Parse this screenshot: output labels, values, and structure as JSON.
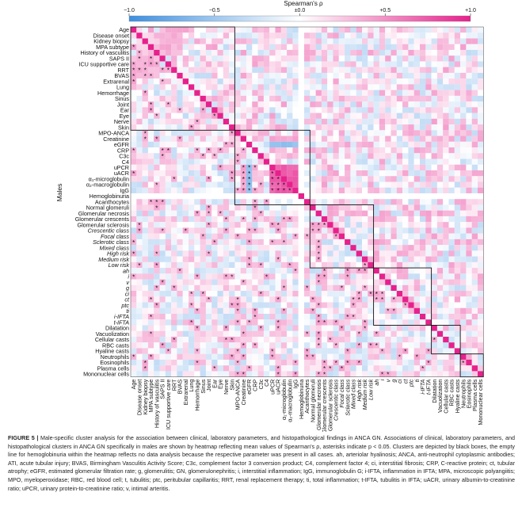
{
  "chart_data": {
    "type": "heatmap",
    "colorbar": {
      "title": "Spearman's ρ",
      "ticks": [
        "−1.0",
        "−0.5",
        "±0.0",
        "+0.5",
        "+1.0"
      ],
      "range": [
        -1,
        1
      ],
      "colors": {
        "negative": "#3d8fe0",
        "neutral": "#ffffff",
        "positive": "#e6218c"
      }
    },
    "ylabel": "Males",
    "variables": [
      "Age",
      "Disease onset",
      "Kidney biopsy",
      "MPA subtype",
      "History of vasculitis",
      "SAPS II",
      "ICU supportive care",
      "RRT",
      "BVAS",
      "Extrarenal",
      "Lung",
      "Hemorrhage",
      "Sinus",
      "Joint",
      "Ear",
      "Eye",
      "Nerve",
      "Skin",
      "MPO-ANCA",
      "Creatinine",
      "eGFR",
      "CRP",
      "C3c",
      "C4",
      "uPCR",
      "uACR",
      "α₁-microglobulin",
      "α₂-macroglobulin",
      "IgG",
      "Hemoglobinuria",
      "Acanthocytes",
      "Normal glomeruli",
      "Glomerular necrosis",
      "Glomerular crescents",
      "Glomerular sclerosis",
      "Crescentic class",
      "Focal class",
      "Sclerotic class",
      "Mixed class",
      "High risk",
      "Medium risk",
      "Low risk",
      "ah",
      "i",
      "v",
      "g",
      "ci",
      "ct",
      "ptc",
      "ti",
      "i-IFTA",
      "t-IFTA",
      "Dilatation",
      "Vacuolization",
      "Cellular casts",
      "RBC casts",
      "Hyaline casts",
      "Neutrophils",
      "Eosinophils",
      "Plasma cells",
      "Mononuclear cells"
    ],
    "italic_variables": [
      "Crescentic class",
      "Focal class",
      "Sclerotic class",
      "Mixed class",
      "High risk",
      "Medium risk",
      "Low risk",
      "ah",
      "i",
      "v",
      "g",
      "ci",
      "ct",
      "ptc",
      "ti",
      "i-IFTA",
      "t-IFTA"
    ],
    "clusters": [
      [
        0,
        17
      ],
      [
        18,
        30
      ],
      [
        31,
        41
      ],
      [
        42,
        51
      ],
      [
        52,
        56
      ],
      [
        57,
        60
      ]
    ],
    "no_data_variable": "Hemoglobinuria",
    "significance_marker": "*",
    "significance_threshold": "p < 0.05",
    "note": "Cell values are approximate readings of the heatmap colors."
  },
  "caption": {
    "label": "FIGURE 5 |",
    "text": "Male-specific cluster analysis for the association between clinical, laboratory parameters, and histopathological findings in ANCA GN. Associations of clinical, laboratory parameters, and histopathological clusters in ANCA GN specifically in males are shown by heatmap reflecting mean values of Spearman's ρ, asterisks indicate p < 0.05. Clusters are depicted by black boxes, the empty line for hemoglobinuria within the heatmap reflects no data analysis because the respective parameter was present in all cases. ah, arteriolar hyalinosis; ANCA, anti-neutrophil cytoplasmic antibodies; ATI, acute tubular injury; BVAS, Birmingham Vasculitis Activity Score; C3c, complement factor 3 conversion product; C4, complement factor 4; ci, interstitial fibrosis; CRP, C-reactive protein; ct, tubular atrophy; eGFR, estimated glomerular filtration rate; g, glomerulitis; GN, glomerulonephritis; i, interstitial inflammation; IgG, immunoglobulin G; i-IFTA, inflammation in IFTA; MPA, microscopic polyangiitis; MPO, myeloperoxidase; RBC, red blood cell; t, tubulitis; ptc, peritubular capillaritis; RRT, renal replacement therapy; ti, total inflammation; t-IFTA, tubulitis in IFTA; uACR, urinary albumin-to-creatinine ratio; uPCR, urinary protein-to-creatinine ratio; v, intimal arteritis."
  }
}
